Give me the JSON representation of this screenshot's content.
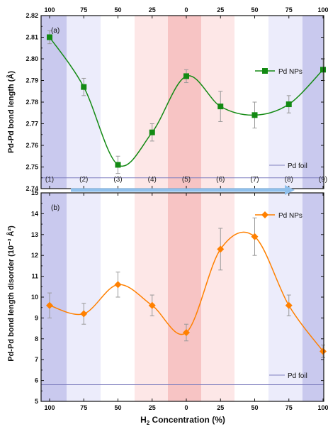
{
  "chart_data": [
    {
      "type": "scatter",
      "panel_label": "(a)",
      "ylabel": "Pd-Pd bond length (Å)",
      "ylim": [
        2.74,
        2.82
      ],
      "yticks": [
        "2.74",
        "2.75",
        "2.76",
        "2.77",
        "2.78",
        "2.79",
        "2.80",
        "2.81",
        "2.82"
      ],
      "top_tick_labels": [
        "100",
        "75",
        "50",
        "25",
        "0",
        "25",
        "50",
        "75",
        "100"
      ],
      "stage_labels": [
        "(1)",
        "(2)",
        "(3)",
        "(4)",
        "(5)",
        "(6)",
        "(7)",
        "(8)",
        "(9)"
      ],
      "series": [
        {
          "name": "Pd NPs",
          "marker": "square",
          "color": "#138a13",
          "x": [
            1,
            2,
            3,
            4,
            5,
            6,
            7,
            8,
            9
          ],
          "y": [
            2.81,
            2.787,
            2.751,
            2.766,
            2.792,
            2.778,
            2.774,
            2.779,
            2.795
          ],
          "err": [
            0.003,
            0.004,
            0.004,
            0.004,
            0.003,
            0.007,
            0.006,
            0.004,
            0.005
          ]
        }
      ],
      "reference": {
        "name": "Pd foil",
        "y": 2.745,
        "color": "#7f7fbf"
      }
    },
    {
      "type": "scatter",
      "panel_label": "(b)",
      "ylabel": "Pd-Pd bond length disorder (10⁻³ Å²)",
      "xlabel": "H₂ Concentration (%)",
      "ylim": [
        5,
        15
      ],
      "yticks": [
        "5",
        "6",
        "7",
        "8",
        "9",
        "10",
        "11",
        "12",
        "13",
        "14",
        "15"
      ],
      "xtick_labels": [
        "100",
        "75",
        "50",
        "25",
        "0",
        "25",
        "50",
        "75",
        "100"
      ],
      "series": [
        {
          "name": "Pd NPs",
          "marker": "diamond",
          "color": "#ff8000",
          "x": [
            1,
            2,
            3,
            4,
            5,
            6,
            7,
            8,
            9
          ],
          "y": [
            9.6,
            9.2,
            10.6,
            9.6,
            8.3,
            12.3,
            12.9,
            9.6,
            7.4
          ],
          "err": [
            0.6,
            0.5,
            0.6,
            0.5,
            0.4,
            1.0,
            0.9,
            0.5,
            0.3
          ]
        }
      ],
      "reference": {
        "name": "Pd foil",
        "y": 5.8,
        "color": "#7f7fbf"
      }
    }
  ],
  "colors": {
    "hydrogenation_band_strong": "#c9c9ee",
    "hydrogenation_band_light": "#ececfb",
    "dehydrogenation_band_strong": "#f7c4c4",
    "dehydrogenation_band_light": "#fde7e7",
    "arrow": "#8fc0ec"
  }
}
